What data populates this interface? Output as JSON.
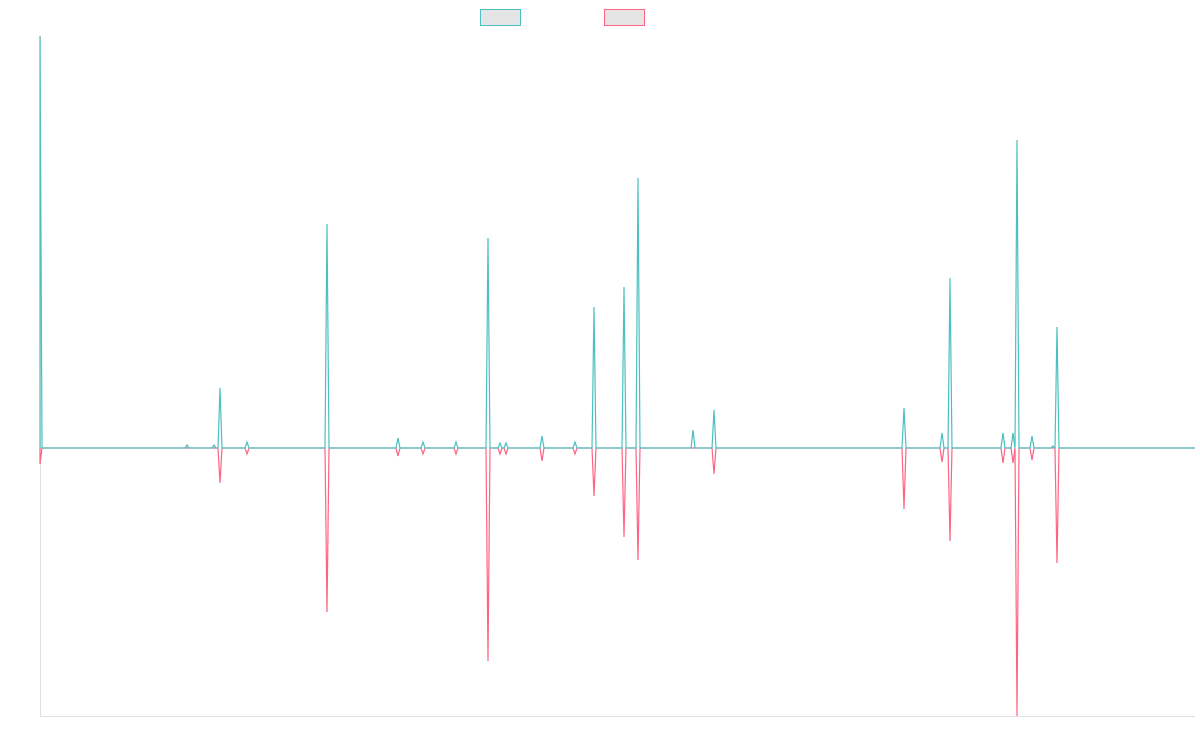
{
  "colors": {
    "series_a": "#4bc0c0",
    "series_b": "#ff6384",
    "legend_fill": "#e5e5e5",
    "axis": "#e0e0e0"
  },
  "chart_data": {
    "type": "line",
    "title": "",
    "xlabel": "",
    "ylabel": "",
    "xlim": [
      0,
      1155
    ],
    "ylim": [
      -268,
      412
    ],
    "grid": false,
    "legend": {
      "placement": "top-center",
      "entries": [
        "",
        ""
      ]
    },
    "series": [
      {
        "name": "",
        "color": "#4bc0c0",
        "baseline": 0,
        "spikes": [
          [
            0,
            412
          ],
          [
            147,
            3
          ],
          [
            174,
            3
          ],
          [
            180,
            60
          ],
          [
            207,
            6
          ],
          [
            287,
            224
          ],
          [
            358,
            10
          ],
          [
            383,
            6
          ],
          [
            416,
            6
          ],
          [
            448,
            210
          ],
          [
            460,
            5
          ],
          [
            466,
            5
          ],
          [
            502,
            12
          ],
          [
            535,
            6
          ],
          [
            554,
            141
          ],
          [
            584,
            161
          ],
          [
            598,
            270
          ],
          [
            653,
            18
          ],
          [
            674,
            38
          ],
          [
            864,
            40
          ],
          [
            902,
            15
          ],
          [
            910,
            170
          ],
          [
            963,
            15
          ],
          [
            973,
            15
          ],
          [
            977,
            308
          ],
          [
            992,
            12
          ],
          [
            1013,
            2
          ],
          [
            1017,
            121
          ]
        ]
      },
      {
        "name": "",
        "color": "#ff6384",
        "baseline": 0,
        "spikes": [
          [
            0,
            -16
          ],
          [
            180,
            -35
          ],
          [
            207,
            -6
          ],
          [
            287,
            -164
          ],
          [
            358,
            -8
          ],
          [
            383,
            -6
          ],
          [
            416,
            -6
          ],
          [
            448,
            -213
          ],
          [
            460,
            -6
          ],
          [
            466,
            -6
          ],
          [
            502,
            -13
          ],
          [
            535,
            -6
          ],
          [
            554,
            -48
          ],
          [
            584,
            -89
          ],
          [
            598,
            -112
          ],
          [
            674,
            -26
          ],
          [
            864,
            -61
          ],
          [
            902,
            -14
          ],
          [
            910,
            -93
          ],
          [
            963,
            -15
          ],
          [
            973,
            -15
          ],
          [
            977,
            -268
          ],
          [
            992,
            -12
          ],
          [
            1017,
            -115
          ]
        ]
      }
    ]
  }
}
